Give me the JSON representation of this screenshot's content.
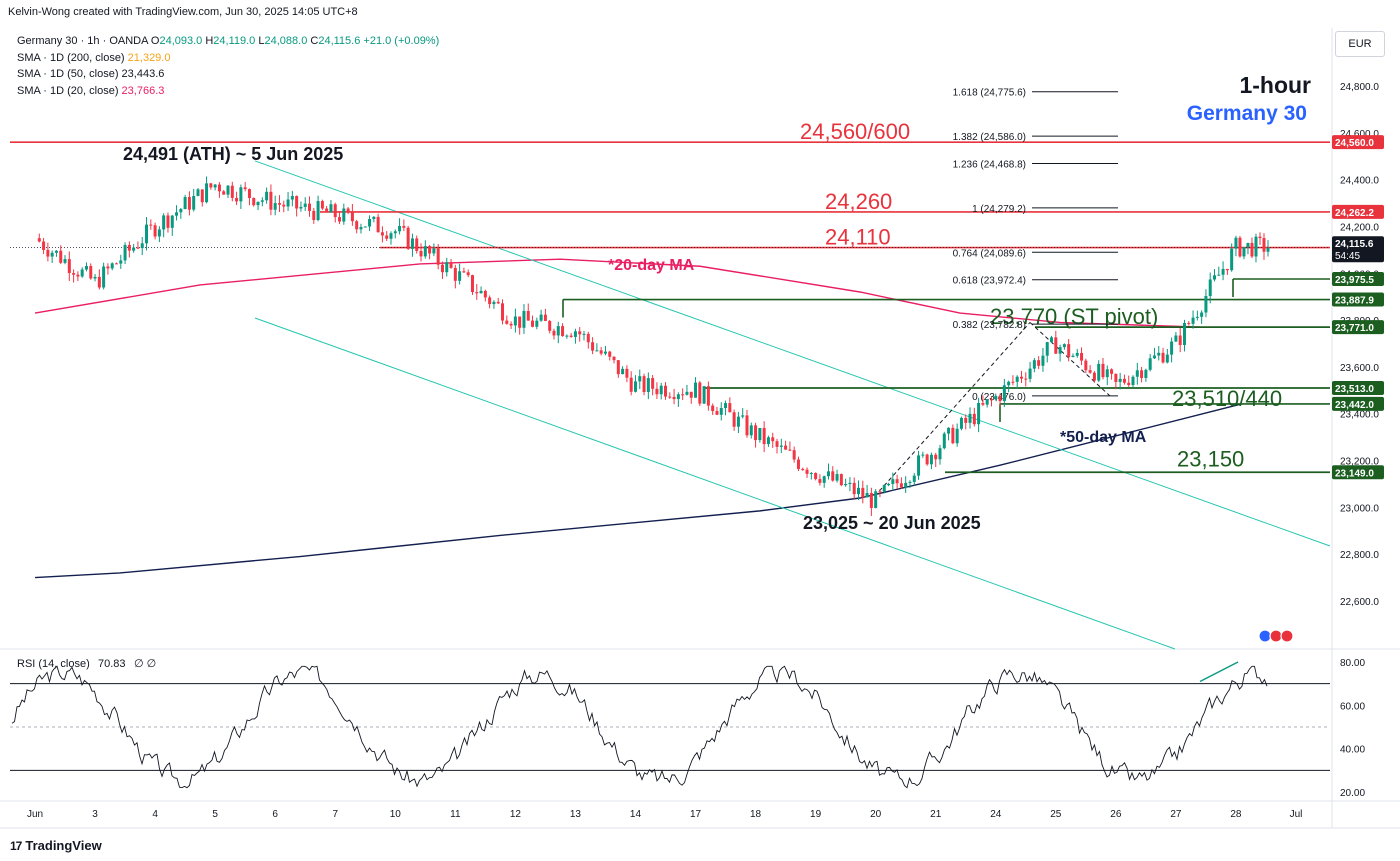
{
  "header": {
    "credit": "Kelvin-Wong created with TradingView.com, Jun 30, 2025 14:05 UTC+8"
  },
  "legend": {
    "symbol": "Germany 30 · 1h · OANDA",
    "open_label": "O",
    "open": "24,093.0",
    "high_label": "H",
    "high": "24,119.0",
    "low_label": "L",
    "low": "24,088.0",
    "close_label": "C",
    "close": "24,115.6",
    "change": "+21.0 (+0.09%)",
    "sma200_label": "SMA · 1D (200, close)",
    "sma200_value": "21,329.0",
    "sma50_label": "SMA · 1D (50, close)",
    "sma50_value": "23,443.6",
    "sma20_label": "SMA · 1D (20, close)",
    "sma20_value": "23,766.3"
  },
  "currency": "EUR",
  "footer": {
    "brand": "TradingView",
    "mark": "17"
  },
  "chart_data": {
    "type": "candlestick",
    "ylim": [
      22400,
      24900
    ],
    "y_ticks": [
      22600,
      22800,
      23000,
      23200,
      23400,
      23600,
      23800,
      24000,
      24200,
      24400,
      24600,
      24800
    ],
    "y_tick_labels": [
      "22,600.0",
      "22,800.0",
      "23,000.0",
      "23,200.0",
      "23,400.0",
      "23,600.0",
      "23,800.0",
      "24,000.0",
      "24,200.0",
      "24,400.0",
      "24,600.0",
      "24,800.0"
    ],
    "x_ticks": [
      "Jun",
      "3",
      "4",
      "5",
      "6",
      "7",
      "10",
      "11",
      "12",
      "13",
      "14",
      "17",
      "18",
      "19",
      "20",
      "21",
      "24",
      "25",
      "26",
      "27",
      "28",
      "Jul"
    ],
    "timeframe_title": "1-hour",
    "instrument_title": "Germany 30",
    "price_path": [
      [
        "Jun",
        24150
      ],
      [
        "3",
        23960
      ],
      [
        "4",
        24200
      ],
      [
        "5",
        24380
      ],
      [
        "6",
        24300
      ],
      [
        "7",
        24250
      ],
      [
        "10",
        24180
      ],
      [
        "11",
        24000
      ],
      [
        "12",
        23800
      ],
      [
        "13",
        23760
      ],
      [
        "14",
        23520
      ],
      [
        "17",
        23500
      ],
      [
        "18",
        23310
      ],
      [
        "19",
        23150
      ],
      [
        "20",
        23025
      ],
      [
        "21",
        23250
      ],
      [
        "24",
        23470
      ],
      [
        "25",
        23700
      ],
      [
        "26",
        23520
      ],
      [
        "27",
        23700
      ],
      [
        "28",
        24110
      ]
    ],
    "price_path_note": "",
    "horizontal_levels": [
      {
        "value": 24560,
        "label": "24,560/600",
        "color": "#e8323c",
        "axis_label": "24,560.0"
      },
      {
        "value": 24262.2,
        "label": "24,260",
        "color": "#e8323c",
        "axis_label": "24,262.2"
      },
      {
        "value": 24110,
        "label": "24,110",
        "color": "#e8323c",
        "axis_label": ""
      },
      {
        "value": 23770,
        "label": "23,770 (ST pivot)",
        "color": "#1b5e20",
        "axis_label": "23,771.0"
      },
      {
        "value": 23510,
        "label": "23,510/440",
        "color": "#1b5e20",
        "axis_label": "23,513.0"
      },
      {
        "value": 23150,
        "label": "23,150",
        "color": "#1b5e20",
        "axis_label": "23,149.0"
      }
    ],
    "support_steps": [
      {
        "value": 23975.5,
        "axis_label": "23,975.5"
      },
      {
        "value": 23887.9,
        "axis_label": "23,887.9"
      },
      {
        "value": 23442.0,
        "axis_label": "23,442.0"
      },
      {
        "value": 24113.8,
        "axis_label": "24,113.8"
      }
    ],
    "current_price": {
      "value": 24115.6,
      "axis_label": "24,115.6",
      "countdown": "54:45"
    },
    "fibonacci": [
      {
        "ratio": "1.618",
        "price": "24,775.6",
        "value": 24775.6
      },
      {
        "ratio": "1.382",
        "price": "24,586.0",
        "value": 24586.0
      },
      {
        "ratio": "1.236",
        "price": "24,468.8",
        "value": 24468.8
      },
      {
        "ratio": "1",
        "price": "24,279.2",
        "value": 24279.2
      },
      {
        "ratio": "0.764",
        "price": "24,089.6",
        "value": 24089.6
      },
      {
        "ratio": "0.618",
        "price": "23,972.4",
        "value": 23972.4
      },
      {
        "ratio": "0.382",
        "price": "23,782.8",
        "value": 23782.8
      },
      {
        "ratio": "0",
        "price": "23,476.0",
        "value": 23476.0
      }
    ],
    "annotations": [
      "24,491 (ATH) ~ 5 Jun 2025",
      "23,025 ~ 20 Jun 2025",
      "*20-day MA",
      "*50-day MA"
    ],
    "rsi": {
      "label": "RSI (14, close)",
      "value": "70.83",
      "extra": "∅ ∅",
      "ylim": [
        15,
        85
      ],
      "ticks": [
        20,
        40,
        60,
        80
      ],
      "tick_labels": [
        "20.00",
        "40.00",
        "60.00",
        "80.00"
      ],
      "upper": 70,
      "mid": 50,
      "lower": 30
    },
    "colors": {
      "up": "#089981",
      "down": "#f23645",
      "resistance": "#e8323c",
      "support": "#1b5e20",
      "sma20": "#e91e63",
      "sma50": "#131f4f",
      "channel": "#26c6b0",
      "title_blue": "#2962ff"
    }
  }
}
